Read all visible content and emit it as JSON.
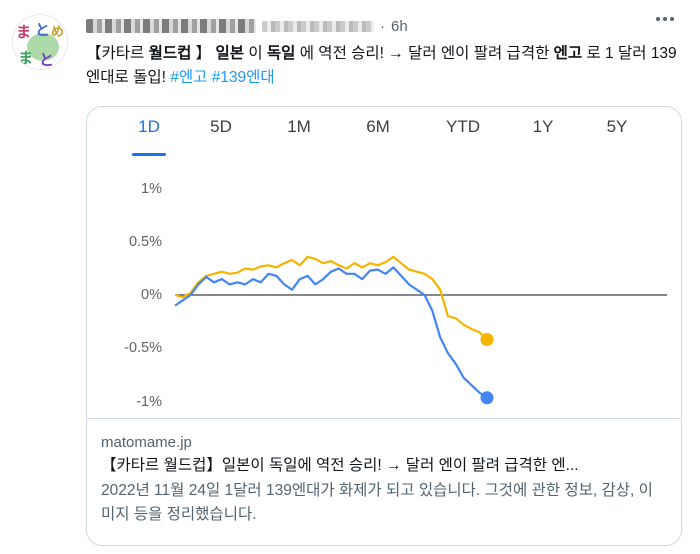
{
  "tweet": {
    "time": "6h",
    "separator": "·",
    "text": {
      "p1": "【카타르 ",
      "b1": "월드컵",
      "p2": " 】 ",
      "b2": "일본",
      "p3": " 이 ",
      "b3": "독일",
      "p4": " 에 역전 승리! → 달러 엔이 팔려 급격한 ",
      "b4": "엔고",
      "p5": " 로 1 달러 139 엔대로 돌입! ",
      "tag1": "#엔고",
      "sp": " ",
      "tag2": "#139엔대"
    }
  },
  "chart": {
    "tabs": [
      "1D",
      "5D",
      "1M",
      "6M",
      "YTD",
      "1Y",
      "5Y"
    ],
    "active_tab": "1D",
    "y_labels": [
      "1%",
      "0.5%",
      "0%",
      "-0.5%",
      "-1%"
    ]
  },
  "chart_data": {
    "type": "line",
    "title": "",
    "xlabel": "",
    "ylabel": "",
    "ylim": [
      -1.0,
      1.0
    ],
    "grid": false,
    "series": [
      {
        "color": "#f4b400",
        "values": [
          0.0,
          -0.02,
          0.02,
          0.12,
          0.18,
          0.2,
          0.22,
          0.2,
          0.21,
          0.25,
          0.24,
          0.27,
          0.28,
          0.26,
          0.3,
          0.33,
          0.28,
          0.36,
          0.34,
          0.3,
          0.32,
          0.28,
          0.25,
          0.3,
          0.26,
          0.3,
          0.28,
          0.31,
          0.36,
          0.3,
          0.24,
          0.22,
          0.2,
          0.15,
          0.05,
          -0.2,
          -0.22,
          -0.28,
          -0.32,
          -0.35,
          -0.42
        ]
      },
      {
        "color": "#4285f4",
        "values": [
          -0.1,
          -0.05,
          0.0,
          0.1,
          0.17,
          0.12,
          0.15,
          0.1,
          0.12,
          0.1,
          0.15,
          0.12,
          0.2,
          0.18,
          0.1,
          0.05,
          0.15,
          0.18,
          0.1,
          0.15,
          0.22,
          0.25,
          0.2,
          0.2,
          0.15,
          0.23,
          0.24,
          0.2,
          0.26,
          0.18,
          0.1,
          0.05,
          0.0,
          -0.15,
          -0.4,
          -0.55,
          -0.65,
          -0.78,
          -0.85,
          -0.92,
          -0.97
        ]
      }
    ]
  },
  "card": {
    "domain": "matomame.jp",
    "title": "【카타르 월드컵】일본이 독일에 역전 승리! → 달러 엔이 팔려 급격한 엔...",
    "description": "2022년 11월 24일 1달러 139엔대가 화제가 되고 있습니다. 그것에 관한 정보, 감상, 이미지 등을 정리했습니다."
  },
  "avatar": {
    "lines": [
      "ま",
      "と",
      "め",
      "ま",
      "とめ"
    ]
  },
  "icons": {
    "more": "more-horizontal-icon"
  },
  "colors": {
    "link": "#1d9bf0",
    "active_tab": "#1a73e8",
    "series_gold": "#f4b400",
    "series_blue": "#4285f4"
  }
}
